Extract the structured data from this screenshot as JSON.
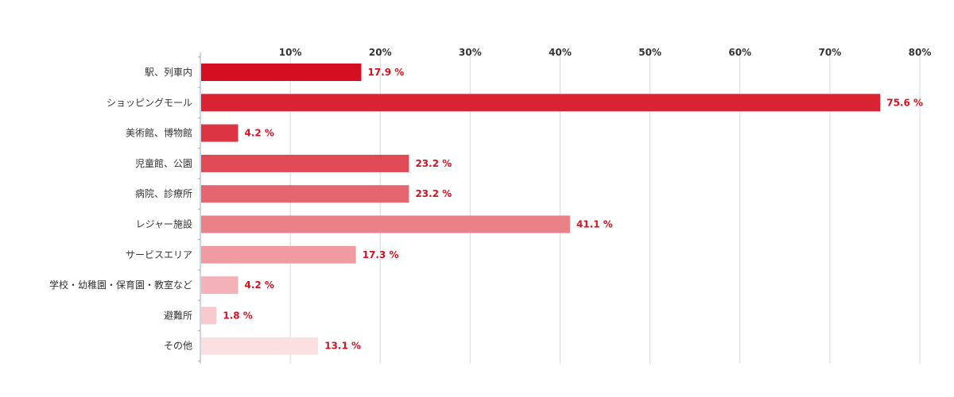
{
  "chart_data": {
    "type": "bar",
    "orientation": "horizontal",
    "title": "",
    "xlabel": "",
    "ylabel": "",
    "xlim": [
      0,
      80
    ],
    "tick_values": [
      10,
      20,
      30,
      40,
      50,
      60,
      70,
      80
    ],
    "tick_labels": [
      "10%",
      "20%",
      "30%",
      "40%",
      "50%",
      "60%",
      "70%",
      "80%"
    ],
    "tick_position": "top",
    "grid": true,
    "categories": [
      "駅、列車内",
      "ショッピングモール",
      "美術館、博物館",
      "児童館、公園",
      "病院、診療所",
      "レジャー施設",
      "サービスエリア",
      "学校・幼稚園・保育園・教室など",
      "避難所",
      "その他"
    ],
    "values": [
      17.9,
      75.6,
      4.2,
      23.2,
      23.2,
      41.1,
      17.3,
      4.2,
      1.8,
      13.1
    ],
    "value_labels": [
      "17.9 %",
      "75.6 %",
      "4.2 %",
      "23.2 %",
      "23.2 %",
      "41.1 %",
      "17.3 %",
      "4.2 %",
      "1.8 %",
      "13.1 %"
    ],
    "bar_colors": [
      "#d50e22",
      "#d92332",
      "#dd3443",
      "#e04a57",
      "#e56570",
      "#ea8088",
      "#ef9ba1",
      "#f3b2b7",
      "#f7c9cc",
      "#fbe0e2"
    ],
    "value_label_color": "#d8101f"
  }
}
